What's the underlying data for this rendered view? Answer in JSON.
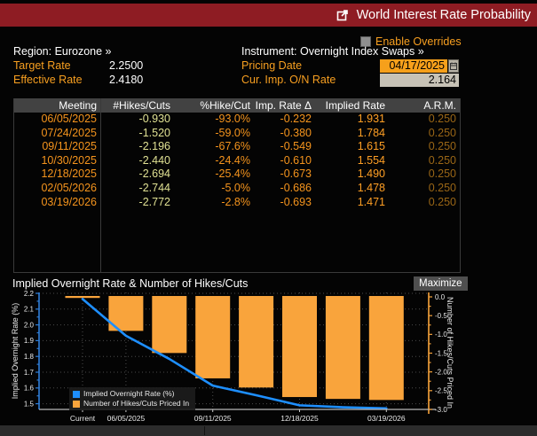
{
  "title_bar": {
    "title": "World Interest Rate Probability"
  },
  "overrides": {
    "label": "Enable Overrides"
  },
  "info": {
    "region_label": "Region:",
    "region_value": "Eurozone »",
    "target_rate_label": "Target Rate",
    "target_rate_value": "2.2500",
    "effective_rate_label": "Effective Rate",
    "effective_rate_value": "2.4180",
    "instrument_label": "Instrument:",
    "instrument_value": "Overnight Index Swaps »",
    "pricing_date_label": "Pricing Date",
    "pricing_date_value": "04/17/2025",
    "cur_imp_label": "Cur. Imp. O/N Rate",
    "cur_imp_value": "2.164"
  },
  "table": {
    "columns": [
      "Meeting",
      "#Hikes/Cuts",
      "%Hike/Cut",
      "Imp. Rate Δ",
      "Implied Rate",
      "A.R.M."
    ],
    "rows": [
      [
        "06/05/2025",
        "-0.930",
        "-93.0%",
        "-0.232",
        "1.931",
        "0.250"
      ],
      [
        "07/24/2025",
        "-1.520",
        "-59.0%",
        "-0.380",
        "1.784",
        "0.250"
      ],
      [
        "09/11/2025",
        "-2.196",
        "-67.6%",
        "-0.549",
        "1.615",
        "0.250"
      ],
      [
        "10/30/2025",
        "-2.440",
        "-24.4%",
        "-0.610",
        "1.554",
        "0.250"
      ],
      [
        "12/18/2025",
        "-2.694",
        "-25.4%",
        "-0.673",
        "1.490",
        "0.250"
      ],
      [
        "02/05/2026",
        "-2.744",
        "-5.0%",
        "-0.686",
        "1.478",
        "0.250"
      ],
      [
        "03/19/2026",
        "-2.772",
        "-2.8%",
        "-0.693",
        "1.471",
        "0.250"
      ]
    ]
  },
  "chart": {
    "title": "Implied Overnight Rate & Number of Hikes/Cuts",
    "maximize_label": "Maximize"
  },
  "chart_data": {
    "type": "combo",
    "categories": [
      "Current",
      "06/05/2025",
      "07/24/2025",
      "09/11/2025",
      "10/30/2025",
      "12/18/2025",
      "02/05/2026",
      "03/19/2026"
    ],
    "x_tick_labels": [
      "Current",
      "06/05/2025",
      "09/11/2025",
      "12/18/2025",
      "03/19/2026"
    ],
    "x_tick_positions": [
      0,
      1,
      3,
      5,
      7
    ],
    "series": [
      {
        "name": "Implied Overnight Rate (%)",
        "type": "line",
        "axis": "left",
        "color": "#1e8fff",
        "values": [
          2.164,
          1.931,
          1.784,
          1.615,
          1.554,
          1.49,
          1.478,
          1.471
        ]
      },
      {
        "name": "Number of Hikes/Cuts Priced In",
        "type": "bar",
        "axis": "right",
        "color": "#f9a43c",
        "values": [
          0,
          -0.93,
          -1.52,
          -2.196,
          -2.44,
          -2.694,
          -2.744,
          -2.772
        ]
      }
    ],
    "left_axis": {
      "label": "Implied Overnight Rate (%)",
      "min": 1.45,
      "max": 2.2,
      "ticks": [
        2.2,
        2.1,
        2.0,
        1.9,
        1.8,
        1.7,
        1.6,
        1.5
      ]
    },
    "right_axis": {
      "label": "Number of Hikes/Cuts Priced In",
      "min": -3.0,
      "max": 0.0,
      "ticks": [
        0.0,
        -0.5,
        -1.0,
        -1.5,
        -2.0,
        -2.5,
        -3.0
      ]
    },
    "grid": true,
    "legend_position": "bottom-left"
  },
  "colors": {
    "titlebar_red": "#8e1c23",
    "amber_label": "#f79f20",
    "date_field_bg": "#f6a01b",
    "gray_field_bg": "#c7c2b6",
    "line_blue": "#1e8fff",
    "bar_orange": "#f9a43c",
    "dim_amber": "#9a6616",
    "pale_yellow": "#e0e193"
  }
}
